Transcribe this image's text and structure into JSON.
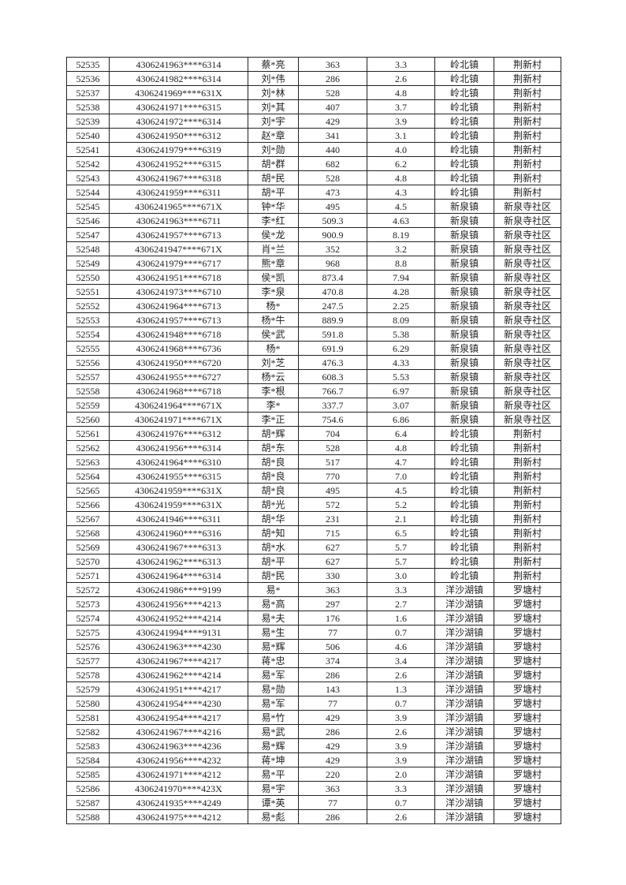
{
  "table": {
    "rows": [
      [
        "52535",
        "4306241963****6314",
        "蔡*亮",
        "363",
        "3.3",
        "岭北镇",
        "荆新村"
      ],
      [
        "52536",
        "4306241982****6314",
        "刘*伟",
        "286",
        "2.6",
        "岭北镇",
        "荆新村"
      ],
      [
        "52537",
        "4306241969****631X",
        "刘*林",
        "528",
        "4.8",
        "岭北镇",
        "荆新村"
      ],
      [
        "52538",
        "4306241971****6315",
        "刘*其",
        "407",
        "3.7",
        "岭北镇",
        "荆新村"
      ],
      [
        "52539",
        "4306241972****6314",
        "刘*宇",
        "429",
        "3.9",
        "岭北镇",
        "荆新村"
      ],
      [
        "52540",
        "4306241950****6312",
        "赵*章",
        "341",
        "3.1",
        "岭北镇",
        "荆新村"
      ],
      [
        "52541",
        "4306241979****6319",
        "刘*勋",
        "440",
        "4.0",
        "岭北镇",
        "荆新村"
      ],
      [
        "52542",
        "4306241952****6315",
        "胡*群",
        "682",
        "6.2",
        "岭北镇",
        "荆新村"
      ],
      [
        "52543",
        "4306241967****6318",
        "胡*民",
        "528",
        "4.8",
        "岭北镇",
        "荆新村"
      ],
      [
        "52544",
        "4306241959****6311",
        "胡*平",
        "473",
        "4.3",
        "岭北镇",
        "荆新村"
      ],
      [
        "52545",
        "4306241965****671X",
        "钟*华",
        "495",
        "4.5",
        "新泉镇",
        "新泉寺社区"
      ],
      [
        "52546",
        "4306241963****6711",
        "李*红",
        "509.3",
        "4.63",
        "新泉镇",
        "新泉寺社区"
      ],
      [
        "52547",
        "4306241957****6713",
        "侯*龙",
        "900.9",
        "8.19",
        "新泉镇",
        "新泉寺社区"
      ],
      [
        "52548",
        "4306241947****671X",
        "肖*兰",
        "352",
        "3.2",
        "新泉镇",
        "新泉寺社区"
      ],
      [
        "52549",
        "4306241979****6717",
        "熊*章",
        "968",
        "8.8",
        "新泉镇",
        "新泉寺社区"
      ],
      [
        "52550",
        "4306241951****6718",
        "侯*凯",
        "873.4",
        "7.94",
        "新泉镇",
        "新泉寺社区"
      ],
      [
        "52551",
        "4306241973****6710",
        "李*泉",
        "470.8",
        "4.28",
        "新泉镇",
        "新泉寺社区"
      ],
      [
        "52552",
        "4306241964****6713",
        "杨*",
        "247.5",
        "2.25",
        "新泉镇",
        "新泉寺社区"
      ],
      [
        "52553",
        "4306241957****6713",
        "杨*牛",
        "889.9",
        "8.09",
        "新泉镇",
        "新泉寺社区"
      ],
      [
        "52554",
        "4306241948****6718",
        "侯*武",
        "591.8",
        "5.38",
        "新泉镇",
        "新泉寺社区"
      ],
      [
        "52555",
        "4306241968****6736",
        "杨*",
        "691.9",
        "6.29",
        "新泉镇",
        "新泉寺社区"
      ],
      [
        "52556",
        "4306241950****6720",
        "刘*芝",
        "476.3",
        "4.33",
        "新泉镇",
        "新泉寺社区"
      ],
      [
        "52557",
        "4306241955****6727",
        "杨*云",
        "608.3",
        "5.53",
        "新泉镇",
        "新泉寺社区"
      ],
      [
        "52558",
        "4306241968****6718",
        "李*根",
        "766.7",
        "6.97",
        "新泉镇",
        "新泉寺社区"
      ],
      [
        "52559",
        "4306241964****671X",
        "李*",
        "337.7",
        "3.07",
        "新泉镇",
        "新泉寺社区"
      ],
      [
        "52560",
        "4306241971****671X",
        "李*正",
        "754.6",
        "6.86",
        "新泉镇",
        "新泉寺社区"
      ],
      [
        "52561",
        "4306241976****6312",
        "胡*辉",
        "704",
        "6.4",
        "岭北镇",
        "荆新村"
      ],
      [
        "52562",
        "4306241956****6314",
        "胡*东",
        "528",
        "4.8",
        "岭北镇",
        "荆新村"
      ],
      [
        "52563",
        "4306241964****6310",
        "胡*良",
        "517",
        "4.7",
        "岭北镇",
        "荆新村"
      ],
      [
        "52564",
        "4306241955****6315",
        "胡*良",
        "770",
        "7.0",
        "岭北镇",
        "荆新村"
      ],
      [
        "52565",
        "4306241959****631X",
        "胡*良",
        "495",
        "4.5",
        "岭北镇",
        "荆新村"
      ],
      [
        "52566",
        "4306241959****631X",
        "胡*光",
        "572",
        "5.2",
        "岭北镇",
        "荆新村"
      ],
      [
        "52567",
        "4306241946****6311",
        "胡*华",
        "231",
        "2.1",
        "岭北镇",
        "荆新村"
      ],
      [
        "52568",
        "4306241960****6316",
        "胡*知",
        "715",
        "6.5",
        "岭北镇",
        "荆新村"
      ],
      [
        "52569",
        "4306241967****6313",
        "胡*水",
        "627",
        "5.7",
        "岭北镇",
        "荆新村"
      ],
      [
        "52570",
        "4306241962****6313",
        "胡*平",
        "627",
        "5.7",
        "岭北镇",
        "荆新村"
      ],
      [
        "52571",
        "4306241964****6314",
        "胡*民",
        "330",
        "3.0",
        "岭北镇",
        "荆新村"
      ],
      [
        "52572",
        "4306241986****9199",
        "易*",
        "363",
        "3.3",
        "洋沙湖镇",
        "罗塘村"
      ],
      [
        "52573",
        "4306241956****4213",
        "易*高",
        "297",
        "2.7",
        "洋沙湖镇",
        "罗塘村"
      ],
      [
        "52574",
        "4306241952****4214",
        "易*夫",
        "176",
        "1.6",
        "洋沙湖镇",
        "罗塘村"
      ],
      [
        "52575",
        "4306241994****9131",
        "易*生",
        "77",
        "0.7",
        "洋沙湖镇",
        "罗塘村"
      ],
      [
        "52576",
        "4306241963****4230",
        "易*辉",
        "506",
        "4.6",
        "洋沙湖镇",
        "罗塘村"
      ],
      [
        "52577",
        "4306241967****4217",
        "蒋*忠",
        "374",
        "3.4",
        "洋沙湖镇",
        "罗塘村"
      ],
      [
        "52578",
        "4306241962****4214",
        "易*军",
        "286",
        "2.6",
        "洋沙湖镇",
        "罗塘村"
      ],
      [
        "52579",
        "4306241951****4217",
        "易*勋",
        "143",
        "1.3",
        "洋沙湖镇",
        "罗塘村"
      ],
      [
        "52580",
        "4306241954****4230",
        "易*军",
        "77",
        "0.7",
        "洋沙湖镇",
        "罗塘村"
      ],
      [
        "52581",
        "4306241954****4217",
        "易*竹",
        "429",
        "3.9",
        "洋沙湖镇",
        "罗塘村"
      ],
      [
        "52582",
        "4306241967****4216",
        "易*武",
        "286",
        "2.6",
        "洋沙湖镇",
        "罗塘村"
      ],
      [
        "52583",
        "4306241963****4236",
        "易*辉",
        "429",
        "3.9",
        "洋沙湖镇",
        "罗塘村"
      ],
      [
        "52584",
        "4306241956****4232",
        "蒋*坤",
        "429",
        "3.9",
        "洋沙湖镇",
        "罗塘村"
      ],
      [
        "52585",
        "4306241971****4212",
        "易*平",
        "220",
        "2.0",
        "洋沙湖镇",
        "罗塘村"
      ],
      [
        "52586",
        "4306241970****423X",
        "易*宇",
        "363",
        "3.3",
        "洋沙湖镇",
        "罗塘村"
      ],
      [
        "52587",
        "4306241935****4249",
        "谭*英",
        "77",
        "0.7",
        "洋沙湖镇",
        "罗塘村"
      ],
      [
        "52588",
        "4306241975****4212",
        "易*彪",
        "286",
        "2.6",
        "洋沙湖镇",
        "罗塘村"
      ]
    ]
  }
}
